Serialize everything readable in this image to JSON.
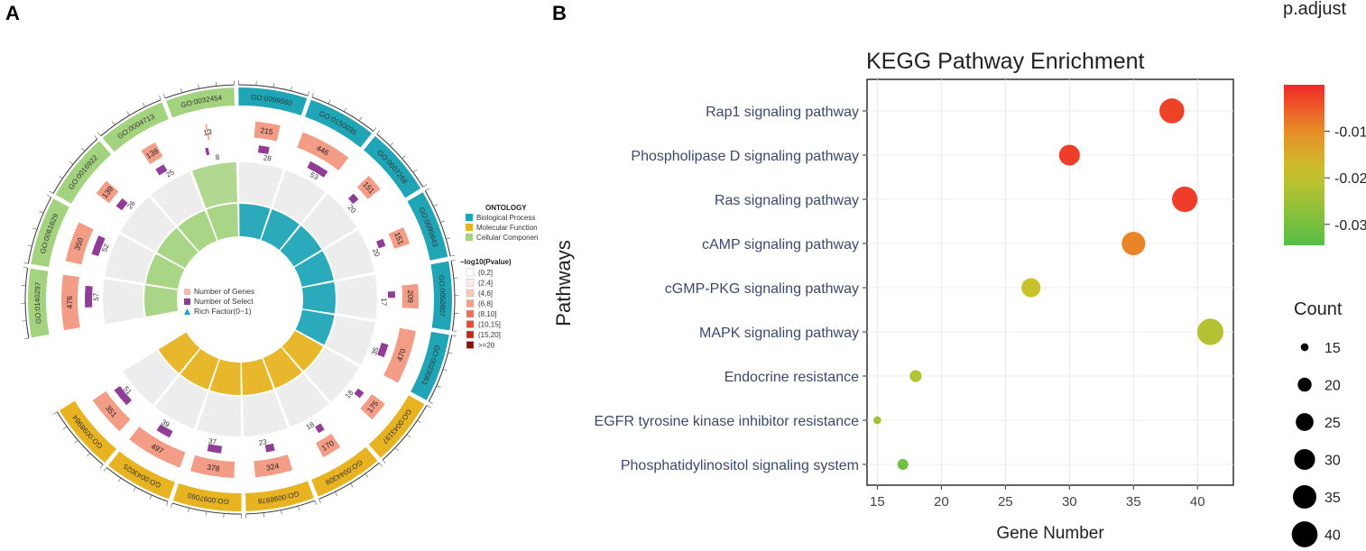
{
  "panel_labels": [
    "A",
    "B"
  ],
  "chart_data": [
    {
      "type": "circular",
      "panel": "A",
      "chart_kind": "GO enrichment circle plot",
      "terms": [
        {
          "id": "GO:0140297",
          "ontology": "Cellular Component",
          "genes": 476,
          "select": 57
        },
        {
          "id": "GO:0061629",
          "ontology": "Cellular Component",
          "genes": 350,
          "select": 52
        },
        {
          "id": "GO:0016922",
          "ontology": "Cellular Component",
          "genes": 139,
          "select": 26
        },
        {
          "id": "GO:0004713",
          "ontology": "Cellular Component",
          "genes": 138,
          "select": 25
        },
        {
          "id": "GO:0032454",
          "ontology": "Cellular Component",
          "genes": 13,
          "select": 8
        },
        {
          "id": "GO:0099560",
          "ontology": "Biological Process",
          "genes": 215,
          "select": 28
        },
        {
          "id": "GO:0150035",
          "ontology": "Biological Process",
          "genes": 446,
          "select": 53
        },
        {
          "id": "GO:0007268",
          "ontology": "Biological Process",
          "genes": 151,
          "select": 20
        },
        {
          "id": "GO:0099643",
          "ontology": "Biological Process",
          "genes": 151,
          "select": 20
        },
        {
          "id": "GO:0050807",
          "ontology": "Biological Process",
          "genes": 209,
          "select": 17
        },
        {
          "id": "GO:0023061",
          "ontology": "Biological Process",
          "genes": 470,
          "select": 35
        },
        {
          "id": "GO:0043197",
          "ontology": "Molecular Function",
          "genes": 175,
          "select": 18
        },
        {
          "id": "GO:0044309",
          "ontology": "Molecular Function",
          "genes": 170,
          "select": 18
        },
        {
          "id": "GO:0098978",
          "ontology": "Molecular Function",
          "genes": 324,
          "select": 23
        },
        {
          "id": "GO:0097060",
          "ontology": "Molecular Function",
          "genes": 378,
          "select": 37
        },
        {
          "id": "GO:0043025",
          "ontology": "Molecular Function",
          "genes": 497,
          "select": 39
        },
        {
          "id": "GO:0098984",
          "ontology": "Molecular Function",
          "genes": 351,
          "select": 51
        }
      ],
      "ontology_legend": {
        "title": "ONTOLOGY",
        "items": [
          {
            "label": "Biological Process",
            "color": "#20a5b7"
          },
          {
            "label": "Molecular Function",
            "color": "#e8b320"
          },
          {
            "label": "Cellular Componen",
            "color": "#a4d37f"
          }
        ]
      },
      "pvalue_legend": {
        "title": "−log10(Pvalue)",
        "items": [
          {
            "label": "(0,2]",
            "color": "#ffffff"
          },
          {
            "label": "(2,4]",
            "color": "#fce9e4"
          },
          {
            "label": "(4,6]",
            "color": "#f8c8b8"
          },
          {
            "label": "(6,8]",
            "color": "#f39c86"
          },
          {
            "label": "(8,10]",
            "color": "#ee6e55"
          },
          {
            "label": "(10,15]",
            "color": "#e04b37"
          },
          {
            "label": "(15,20]",
            "color": "#c4261b"
          },
          {
            "label": ">=20",
            "color": "#8a1010"
          }
        ]
      },
      "inner_legend": [
        {
          "label": "Number of Genes",
          "color": "#f6b9b4"
        },
        {
          "label": "Number of Select",
          "color": "#8f3d97"
        },
        {
          "label": "Rich Factor(0~1)",
          "color": "#1fa2c9"
        }
      ]
    },
    {
      "type": "scatter",
      "panel": "B",
      "title": "KEGG Pathway Enrichment",
      "xlabel": "Gene Number",
      "ylabel": "Pathways",
      "xlim": [
        14.2,
        42.8
      ],
      "xticks": [
        15,
        20,
        25,
        30,
        35,
        40
      ],
      "pathways": [
        {
          "name": "Rap1 signaling pathway",
          "gene_number": 38,
          "count": 38,
          "padjust": -0.0025
        },
        {
          "name": "Phospholipase D signaling pathway",
          "gene_number": 30,
          "count": 30,
          "padjust": -0.002
        },
        {
          "name": "Ras signaling pathway",
          "gene_number": 39,
          "count": 39,
          "padjust": -0.002
        },
        {
          "name": "cAMP signaling pathway",
          "gene_number": 35,
          "count": 35,
          "padjust": -0.009
        },
        {
          "name": "cGMP-PKG signaling pathway",
          "gene_number": 27,
          "count": 27,
          "padjust": -0.019
        },
        {
          "name": "MAPK signaling pathway",
          "gene_number": 41,
          "count": 41,
          "padjust": -0.022
        },
        {
          "name": "Endocrine resistance",
          "gene_number": 18,
          "count": 18,
          "padjust": -0.022
        },
        {
          "name": "EGFR tyrosine kinase inhibitor resistance",
          "gene_number": 15,
          "count": 15,
          "padjust": -0.024
        },
        {
          "name": "Phosphatidylinositol signaling system",
          "gene_number": 17,
          "count": 17,
          "padjust": -0.031
        }
      ],
      "color_legend": {
        "title": "p.adjust",
        "range": [
          -0.0345,
          0.0
        ],
        "ticks": [
          {
            "value": -0.01,
            "label": "-0.01"
          },
          {
            "value": -0.02,
            "label": "-0.02"
          },
          {
            "value": -0.03,
            "label": "-0.03"
          }
        ]
      },
      "size_legend": {
        "title": "Count",
        "values": [
          15,
          20,
          25,
          30,
          35,
          40
        ]
      }
    }
  ]
}
